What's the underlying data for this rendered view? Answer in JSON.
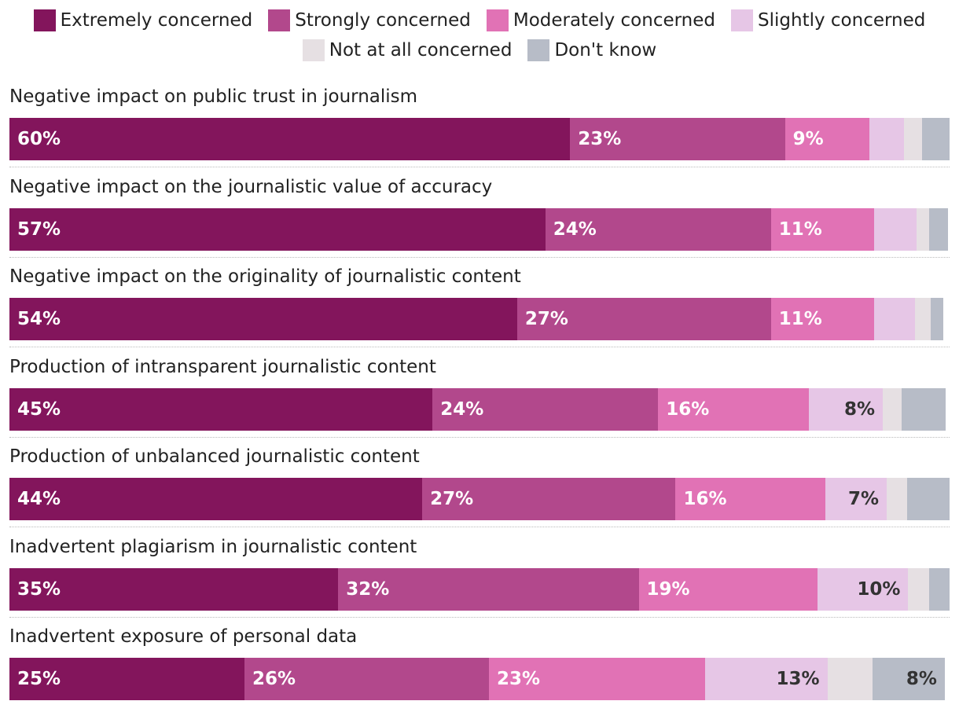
{
  "chart_data": {
    "type": "bar",
    "orientation": "horizontal",
    "stacked": true,
    "xlim": [
      0,
      100
    ],
    "legend_position": "top",
    "categories": [
      "Negative impact on public trust in journalism",
      "Negative impact on the journalistic value of accuracy",
      "Negative impact on the originality of journalistic content",
      "Production of intransparent journalistic content",
      "Production of unbalanced journalistic content",
      "Inadvertent plagiarism in journalistic content",
      "Inadvertent exposure of personal data"
    ],
    "series": [
      {
        "name": "Extremely concerned",
        "color": "#83155c",
        "text_color": "#ffffff",
        "values": [
          60,
          57,
          54,
          45,
          44,
          35,
          25
        ],
        "labels": [
          "60%",
          "57%",
          "54%",
          "45%",
          "44%",
          "35%",
          "25%"
        ]
      },
      {
        "name": "Strongly concerned",
        "color": "#b2488c",
        "text_color": "#ffffff",
        "values": [
          23,
          24,
          27,
          24,
          27,
          32,
          26
        ],
        "labels": [
          "23%",
          "24%",
          "27%",
          "24%",
          "27%",
          "32%",
          "26%"
        ]
      },
      {
        "name": "Moderately concerned",
        "color": "#e172b5",
        "text_color": "#ffffff",
        "values": [
          9,
          11,
          11,
          16,
          16,
          19,
          23
        ],
        "labels": [
          "9%",
          "11%",
          "11%",
          "16%",
          "16%",
          "19%",
          "23%"
        ]
      },
      {
        "name": "Slightly concerned",
        "color": "#e6c6e6",
        "text_color": "#333333",
        "values": [
          3.7,
          4.5,
          4.3,
          7.9,
          6.5,
          9.7,
          13
        ],
        "labels": [
          "",
          "",
          "",
          "8%",
          "7%",
          "10%",
          "13%"
        ]
      },
      {
        "name": "Not at all concerned",
        "color": "#e6e0e3",
        "text_color": "#333333",
        "values": [
          2.0,
          1.3,
          1.7,
          2.0,
          2.2,
          2.2,
          4.8
        ],
        "labels": [
          "",
          "",
          "",
          "",
          "",
          "",
          ""
        ]
      },
      {
        "name": "Don't know",
        "color": "#b7bcc7",
        "text_color": "#333333",
        "values": [
          2.9,
          2.0,
          1.3,
          4.7,
          4.5,
          2.2,
          7.7
        ],
        "labels": [
          "",
          "",
          "",
          "",
          "",
          "",
          "8%"
        ]
      }
    ]
  }
}
